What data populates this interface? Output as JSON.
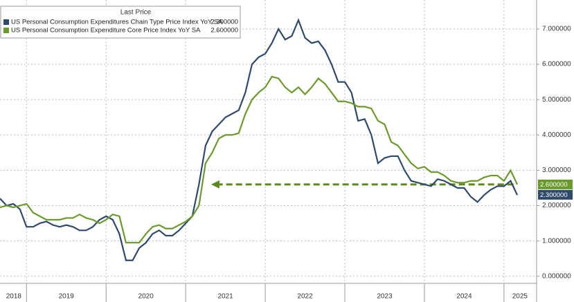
{
  "chart_data": {
    "type": "line",
    "legend_title": "Last Price",
    "xlim": [
      2018.667,
      2025.41
    ],
    "xgrid": [
      2019,
      2020,
      2021,
      2022,
      2023,
      2024,
      2025
    ],
    "xticks": [
      {
        "value": 2018.84,
        "label": "2018"
      },
      {
        "value": 2019.5,
        "label": "2019"
      },
      {
        "value": 2020.5,
        "label": "2020"
      },
      {
        "value": 2021.5,
        "label": "2021"
      },
      {
        "value": 2022.5,
        "label": "2022"
      },
      {
        "value": 2023.5,
        "label": "2023"
      },
      {
        "value": 2024.5,
        "label": "2024"
      },
      {
        "value": 2025.2,
        "label": "2025"
      }
    ],
    "ylim": [
      -0.2,
      7.82
    ],
    "yticks": [
      {
        "value": 0,
        "label": "0.000000"
      },
      {
        "value": 1,
        "label": "1.000000"
      },
      {
        "value": 2,
        "label": "2.000000"
      },
      {
        "value": 3,
        "label": "3.000000"
      },
      {
        "value": 4,
        "label": "4.000000"
      },
      {
        "value": 5,
        "label": "5.000000"
      },
      {
        "value": 6,
        "label": "6.000000"
      },
      {
        "value": 7,
        "label": "7.000000"
      }
    ],
    "grid": true,
    "x_start": 2018.667,
    "x_step": 0.08333,
    "series": [
      {
        "name": "US Personal Consumption Expenditures Chain Type Price Index YoY SA",
        "color": "#2e4a6b",
        "last_label": "2.300000",
        "values": [
          2.2,
          2.0,
          2.05,
          1.9,
          1.4,
          1.4,
          1.5,
          1.55,
          1.45,
          1.4,
          1.45,
          1.4,
          1.3,
          1.3,
          1.4,
          1.6,
          1.7,
          1.6,
          1.2,
          0.45,
          0.45,
          0.8,
          0.95,
          1.2,
          1.3,
          1.15,
          1.15,
          1.3,
          1.5,
          1.7,
          2.6,
          3.7,
          4.1,
          4.3,
          4.5,
          4.6,
          4.7,
          5.2,
          6.0,
          6.2,
          6.3,
          6.6,
          7.0,
          6.7,
          6.8,
          7.25,
          6.75,
          6.6,
          6.65,
          6.4,
          6.0,
          5.5,
          5.5,
          5.2,
          4.4,
          4.45,
          4.0,
          3.2,
          3.35,
          3.4,
          3.4,
          3.0,
          2.7,
          2.65,
          2.6,
          2.55,
          2.75,
          2.7,
          2.6,
          2.5,
          2.5,
          2.25,
          2.1,
          2.3,
          2.45,
          2.55,
          2.55,
          2.7,
          2.3
        ]
      },
      {
        "name": "US Personal Consumption Expenditure Core Price Index YoY SA",
        "color": "#6a9a2a",
        "last_label": "2.600000",
        "values": [
          1.95,
          2.0,
          1.95,
          2.0,
          2.05,
          1.8,
          1.7,
          1.6,
          1.6,
          1.6,
          1.65,
          1.65,
          1.75,
          1.65,
          1.6,
          1.5,
          1.6,
          1.75,
          1.7,
          0.95,
          0.95,
          0.95,
          1.2,
          1.4,
          1.45,
          1.35,
          1.35,
          1.45,
          1.55,
          1.7,
          2.0,
          3.2,
          3.5,
          3.9,
          4.0,
          4.0,
          4.05,
          4.6,
          5.0,
          5.2,
          5.35,
          5.65,
          5.6,
          5.35,
          5.2,
          5.35,
          5.15,
          5.35,
          5.6,
          5.45,
          5.2,
          4.95,
          4.95,
          4.9,
          4.8,
          4.8,
          4.75,
          4.4,
          4.3,
          3.8,
          3.7,
          3.45,
          3.2,
          3.05,
          3.1,
          2.95,
          2.95,
          2.85,
          2.7,
          2.65,
          2.65,
          2.7,
          2.7,
          2.8,
          2.85,
          2.85,
          2.7,
          3.0,
          2.6
        ]
      }
    ],
    "arrow": {
      "y": 2.6,
      "x_from": 2025.12,
      "x_to": 2021.32,
      "color": "#5c8a1e"
    }
  }
}
